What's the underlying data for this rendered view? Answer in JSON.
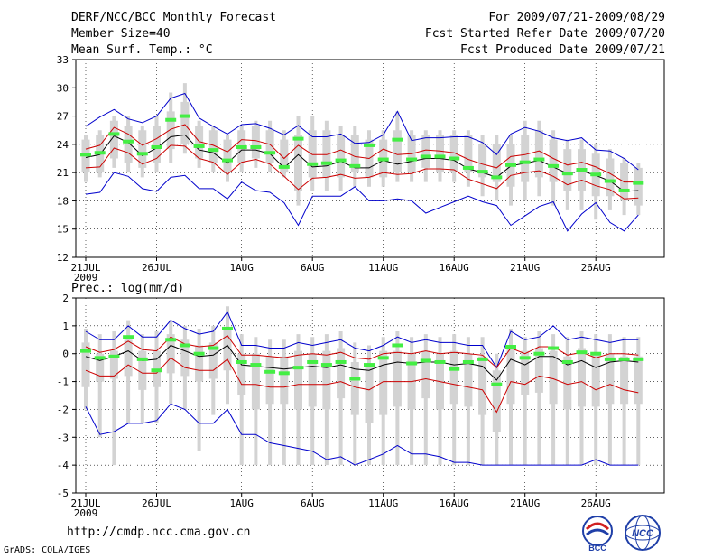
{
  "header": {
    "title": "DERF/NCC/BCC Monthly Forecast",
    "member_size": "Member Size=40",
    "variable": "Mean Surf. Temp.: °C",
    "forecast_period": "For 2009/07/21-2009/08/29",
    "started_date": "Fcst Started Refer Date 2009/07/20",
    "produced_date": "Fcst Produced Date 2009/07/21"
  },
  "footer": {
    "url": "http://cmdp.ncc.cma.gov.cn",
    "grads": "GrADS: COLA/IGES",
    "logos": [
      "BCC",
      "NCC"
    ]
  },
  "colors": {
    "box": "#d3d3d3",
    "mean": "#000000",
    "red": "#cc0000",
    "blue": "#0000cc",
    "green": "#44ee44"
  },
  "chart_data": [
    {
      "type": "box-ensemble",
      "title": "Mean Surf. Temp.: °C",
      "ylim": [
        12,
        33
      ],
      "yticks": [
        12,
        15,
        18,
        21,
        24,
        27,
        30,
        33
      ],
      "x_days": 40,
      "x_tick_days": [
        0,
        5,
        11,
        16,
        21,
        26,
        31,
        36
      ],
      "x_tick_labels": [
        "21JUL",
        "26JUL",
        "1AUG",
        "6AUG",
        "11AUG",
        "16AUG",
        "21AUG",
        "26AUG"
      ],
      "x_sublabel": "2009",
      "series": [
        {
          "name": "box-low",
          "values": [
            21,
            21,
            22.5,
            22,
            21.5,
            22,
            23.5,
            24,
            22.5,
            22,
            21,
            22,
            22.5,
            22,
            21,
            19,
            20.5,
            20.5,
            20.5,
            21,
            20.5,
            20.5,
            21,
            21,
            21.5,
            21,
            21,
            21,
            20.5,
            20,
            19.5,
            20,
            20.5,
            20,
            19,
            19,
            18.5,
            18.5,
            18,
            17.5
          ]
        },
        {
          "name": "box-high",
          "values": [
            24.5,
            25,
            26.5,
            26,
            25.5,
            26,
            27.5,
            28.5,
            26,
            25.5,
            24.5,
            25.5,
            26,
            25.5,
            24.5,
            25,
            25.5,
            25.5,
            25,
            25,
            24.5,
            24.5,
            25.5,
            25,
            25,
            25,
            25,
            25,
            24,
            24,
            24,
            25,
            25.5,
            24.5,
            23.5,
            23.5,
            23,
            22.5,
            22,
            21.5
          ]
        },
        {
          "name": "box-min",
          "values": [
            20,
            20.5,
            21.5,
            21,
            20.5,
            21,
            22,
            23,
            21.5,
            21,
            20,
            21,
            21.5,
            21,
            20.5,
            17.5,
            19,
            19,
            19,
            19.5,
            19.5,
            19.5,
            20,
            20,
            20,
            20,
            20,
            19.5,
            18.5,
            18,
            17.5,
            18,
            18.5,
            17.5,
            17,
            17,
            16,
            17,
            16.5,
            16.5
          ]
        },
        {
          "name": "box-max",
          "values": [
            25,
            25.5,
            27,
            27,
            26,
            27,
            29.5,
            30.5,
            26.5,
            26,
            25,
            26,
            26.5,
            26.5,
            25.5,
            27,
            27,
            26.5,
            26,
            26,
            25.5,
            25.5,
            27.5,
            25.5,
            25.5,
            25.5,
            25.5,
            25.5,
            25,
            25,
            25,
            26.5,
            26.5,
            25.5,
            24.5,
            24.5,
            24,
            23.5,
            22.5,
            22
          ]
        },
        {
          "name": "mean",
          "values": [
            22.6,
            22.9,
            24.9,
            24.2,
            22.8,
            23.6,
            24.8,
            25.0,
            23.4,
            23.1,
            22.0,
            23.4,
            23.4,
            23.0,
            21.5,
            22.9,
            21.6,
            21.7,
            22.2,
            21.5,
            21.5,
            22.3,
            21.9,
            22.2,
            22.5,
            22.5,
            22.3,
            21.4,
            21.0,
            20.5,
            21.7,
            22.0,
            22.3,
            21.6,
            20.9,
            21.2,
            20.7,
            20.1,
            19.0,
            19.1
          ]
        },
        {
          "name": "mean+sd",
          "values": [
            23.5,
            23.9,
            25.8,
            25.1,
            23.9,
            24.6,
            25.6,
            26.1,
            24.3,
            23.9,
            23.2,
            24.5,
            24.4,
            24.0,
            22.5,
            23.9,
            22.9,
            22.9,
            23.4,
            22.7,
            22.5,
            23.5,
            22.9,
            23.0,
            23.4,
            23.3,
            23.1,
            22.4,
            21.9,
            21.5,
            22.7,
            22.9,
            23.3,
            22.5,
            21.8,
            22.1,
            21.6,
            20.9,
            20.0,
            20.0
          ]
        },
        {
          "name": "mean-sd",
          "values": [
            21.5,
            21.6,
            23.6,
            23.1,
            21.9,
            22.5,
            23.9,
            23.8,
            22.5,
            22.1,
            20.8,
            22.1,
            22.4,
            21.9,
            20.6,
            19.2,
            20.4,
            20.5,
            20.8,
            20.4,
            20.5,
            21.0,
            20.8,
            20.9,
            21.4,
            21.4,
            21.3,
            20.3,
            19.8,
            19.3,
            20.7,
            21.0,
            21.2,
            20.6,
            19.7,
            20.2,
            19.6,
            19.2,
            18.2,
            18.3
          ]
        },
        {
          "name": "max-member",
          "values": [
            25.9,
            26.9,
            27.7,
            26.7,
            26.3,
            27.0,
            28.9,
            29.4,
            26.8,
            25.9,
            25.1,
            26.1,
            26.2,
            25.7,
            25.0,
            26.0,
            24.8,
            24.8,
            25.1,
            24.1,
            24.2,
            25.0,
            27.5,
            24.4,
            24.7,
            24.7,
            24.8,
            24.8,
            24.2,
            22.9,
            25.1,
            25.8,
            25.4,
            24.7,
            24.4,
            24.7,
            23.4,
            23.3,
            22.5,
            21.3
          ]
        },
        {
          "name": "min-member",
          "values": [
            18.7,
            18.9,
            21.0,
            20.6,
            19.3,
            19.0,
            20.5,
            20.7,
            19.3,
            19.3,
            18.2,
            20.0,
            19.1,
            18.9,
            17.8,
            15.4,
            18.5,
            18.5,
            18.5,
            19.5,
            18.0,
            18.0,
            18.2,
            18.0,
            16.7,
            17.3,
            17.9,
            18.5,
            17.9,
            17.5,
            15.4,
            16.4,
            17.4,
            17.9,
            14.8,
            16.6,
            17.8,
            15.7,
            14.8,
            16.5
          ]
        },
        {
          "name": "median",
          "values": [
            22.9,
            23.1,
            25.1,
            24.3,
            23.0,
            23.7,
            26.6,
            27.0,
            23.8,
            23.4,
            22.3,
            23.7,
            23.7,
            23.1,
            21.6,
            24.6,
            21.9,
            22.0,
            22.3,
            21.7,
            23.9,
            22.4,
            24.5,
            22.4,
            22.7,
            22.7,
            22.5,
            21.5,
            21.1,
            20.5,
            21.8,
            22.1,
            22.4,
            21.7,
            20.9,
            21.3,
            20.8,
            20.1,
            19.1,
            19.9
          ]
        }
      ]
    },
    {
      "type": "box-ensemble",
      "title": "Prec.: log(mm/d)",
      "ylim": [
        -5,
        2
      ],
      "yticks": [
        -5,
        -4,
        -3,
        -2,
        -1,
        0,
        1,
        2
      ],
      "x_days": 40,
      "x_tick_days": [
        0,
        5,
        11,
        16,
        21,
        26,
        31,
        36
      ],
      "x_tick_labels": [
        "21JUL",
        "26JUL",
        "1AUG",
        "6AUG",
        "11AUG",
        "16AUG",
        "21AUG",
        "26AUG"
      ],
      "x_sublabel": "2009",
      "series": [
        {
          "name": "box-low",
          "values": [
            -1.2,
            -1.0,
            -0.9,
            -0.8,
            -1.3,
            -1.2,
            -0.7,
            -0.8,
            -1.0,
            -0.9,
            -0.6,
            -1.5,
            -2.0,
            -1.8,
            -1.8,
            -2.0,
            -1.9,
            -2.0,
            -1.6,
            -2.2,
            -2.5,
            -2.2,
            -1.9,
            -2.0,
            -1.6,
            -2.0,
            -1.8,
            -1.9,
            -2.2,
            -2.8,
            -1.8,
            -1.5,
            -1.4,
            -1.8,
            -2.0,
            -1.9,
            -1.9,
            -1.8,
            -1.8,
            -1.8
          ]
        },
        {
          "name": "box-high",
          "values": [
            0.4,
            0.0,
            0.1,
            0.5,
            0.1,
            0.1,
            0.7,
            0.5,
            0.3,
            0.4,
            0.9,
            0.0,
            0.0,
            -0.1,
            -0.1,
            0.1,
            0.0,
            0.1,
            0.2,
            -0.3,
            -0.5,
            0.1,
            0.1,
            0.0,
            0.1,
            0.0,
            0.1,
            0.0,
            -0.1,
            -0.6,
            0.3,
            0.1,
            0.2,
            0.1,
            -0.1,
            0.2,
            0.0,
            0.0,
            -0.1,
            -0.1
          ]
        },
        {
          "name": "box-min",
          "values": [
            -2.0,
            -3.0,
            -4.0,
            -2.5,
            -2.5,
            -2.5,
            -1.8,
            -2.0,
            -3.5,
            -2.2,
            -1.8,
            -4.0,
            -4.0,
            -4.0,
            -4.0,
            -4.0,
            -4.0,
            -4.0,
            -4.0,
            -4.0,
            -4.0,
            -4.0,
            -4.0,
            -4.0,
            -4.0,
            -4.0,
            -4.0,
            -4.0,
            -4.0,
            -4.0,
            -4.0,
            -4.0,
            -4.0,
            -4.0,
            -4.0,
            -4.0,
            -4.0,
            -4.0,
            -4.0,
            -4.0
          ]
        },
        {
          "name": "box-max",
          "values": [
            0.9,
            0.7,
            0.8,
            1.2,
            0.7,
            0.8,
            1.2,
            1.0,
            0.9,
            1.0,
            1.7,
            0.7,
            0.6,
            0.5,
            0.5,
            0.7,
            0.6,
            0.7,
            0.8,
            0.4,
            0.3,
            0.6,
            0.8,
            0.6,
            0.7,
            0.6,
            0.7,
            0.6,
            0.6,
            0.0,
            0.9,
            0.6,
            0.8,
            0.7,
            0.6,
            0.8,
            0.7,
            0.7,
            0.6,
            0.6
          ]
        },
        {
          "name": "mean",
          "values": [
            -0.1,
            -0.25,
            -0.1,
            0.1,
            -0.25,
            -0.2,
            0.3,
            0.1,
            -0.1,
            -0.05,
            0.3,
            -0.4,
            -0.45,
            -0.5,
            -0.55,
            -0.5,
            -0.45,
            -0.5,
            -0.4,
            -0.55,
            -0.6,
            -0.4,
            -0.3,
            -0.35,
            -0.3,
            -0.3,
            -0.4,
            -0.35,
            -0.45,
            -0.95,
            -0.2,
            -0.4,
            -0.1,
            -0.1,
            -0.4,
            -0.25,
            -0.5,
            -0.3,
            -0.25,
            -0.3
          ]
        },
        {
          "name": "mean+sd",
          "values": [
            0.25,
            0.05,
            0.15,
            0.45,
            0.15,
            0.1,
            0.6,
            0.35,
            0.25,
            0.3,
            0.65,
            -0.05,
            -0.05,
            -0.1,
            -0.15,
            -0.05,
            0.0,
            -0.05,
            0.05,
            -0.15,
            -0.2,
            0.0,
            0.05,
            0.0,
            0.1,
            0.0,
            0.05,
            0.0,
            -0.05,
            -0.5,
            0.2,
            0.0,
            0.25,
            0.25,
            -0.05,
            0.05,
            -0.15,
            0.0,
            0.0,
            -0.05
          ]
        },
        {
          "name": "mean-sd",
          "values": [
            -0.6,
            -0.8,
            -0.8,
            -0.4,
            -0.7,
            -0.7,
            -0.15,
            -0.5,
            -0.6,
            -0.6,
            -0.2,
            -1.1,
            -1.1,
            -1.2,
            -1.2,
            -1.1,
            -1.1,
            -1.1,
            -1.0,
            -1.2,
            -1.3,
            -1.0,
            -1.0,
            -1.0,
            -0.9,
            -1.0,
            -1.1,
            -1.2,
            -1.3,
            -2.1,
            -1.0,
            -1.1,
            -0.8,
            -0.9,
            -1.1,
            -1.0,
            -1.3,
            -1.1,
            -1.3,
            -1.4
          ]
        },
        {
          "name": "max-member",
          "values": [
            0.8,
            0.5,
            0.5,
            1.0,
            0.6,
            0.6,
            1.2,
            0.9,
            0.7,
            0.8,
            1.5,
            0.3,
            0.3,
            0.2,
            0.2,
            0.4,
            0.3,
            0.4,
            0.5,
            0.2,
            0.1,
            0.3,
            0.6,
            0.4,
            0.5,
            0.4,
            0.4,
            0.3,
            0.3,
            -0.5,
            0.8,
            0.5,
            0.6,
            1.0,
            0.5,
            0.6,
            0.5,
            0.4,
            0.5,
            0.5
          ]
        },
        {
          "name": "min-member",
          "values": [
            -1.9,
            -2.9,
            -2.8,
            -2.5,
            -2.5,
            -2.4,
            -1.8,
            -2.0,
            -2.5,
            -2.5,
            -2.0,
            -2.9,
            -2.9,
            -3.2,
            -3.3,
            -3.4,
            -3.5,
            -3.8,
            -3.7,
            -4.0,
            -3.8,
            -3.6,
            -3.3,
            -3.6,
            -3.6,
            -3.7,
            -3.9,
            -3.9,
            -4.0,
            -4.0,
            -4.0,
            -4.0,
            -4.0,
            -4.0,
            -4.0,
            -4.0,
            -3.8,
            -4.0,
            -4.0,
            -4.0
          ]
        },
        {
          "name": "median",
          "values": [
            0.1,
            -0.15,
            -0.1,
            0.6,
            -0.2,
            -0.6,
            0.5,
            0.3,
            0.0,
            0.2,
            0.9,
            -0.3,
            -0.4,
            -0.65,
            -0.7,
            -0.5,
            -0.3,
            -0.4,
            -0.3,
            -0.9,
            -0.4,
            -0.15,
            0.3,
            -0.35,
            -0.25,
            -0.3,
            -0.55,
            -0.3,
            -0.2,
            -1.1,
            0.25,
            -0.15,
            0.0,
            0.2,
            -0.3,
            0.05,
            0.0,
            -0.2,
            -0.2,
            -0.2
          ]
        }
      ]
    }
  ]
}
